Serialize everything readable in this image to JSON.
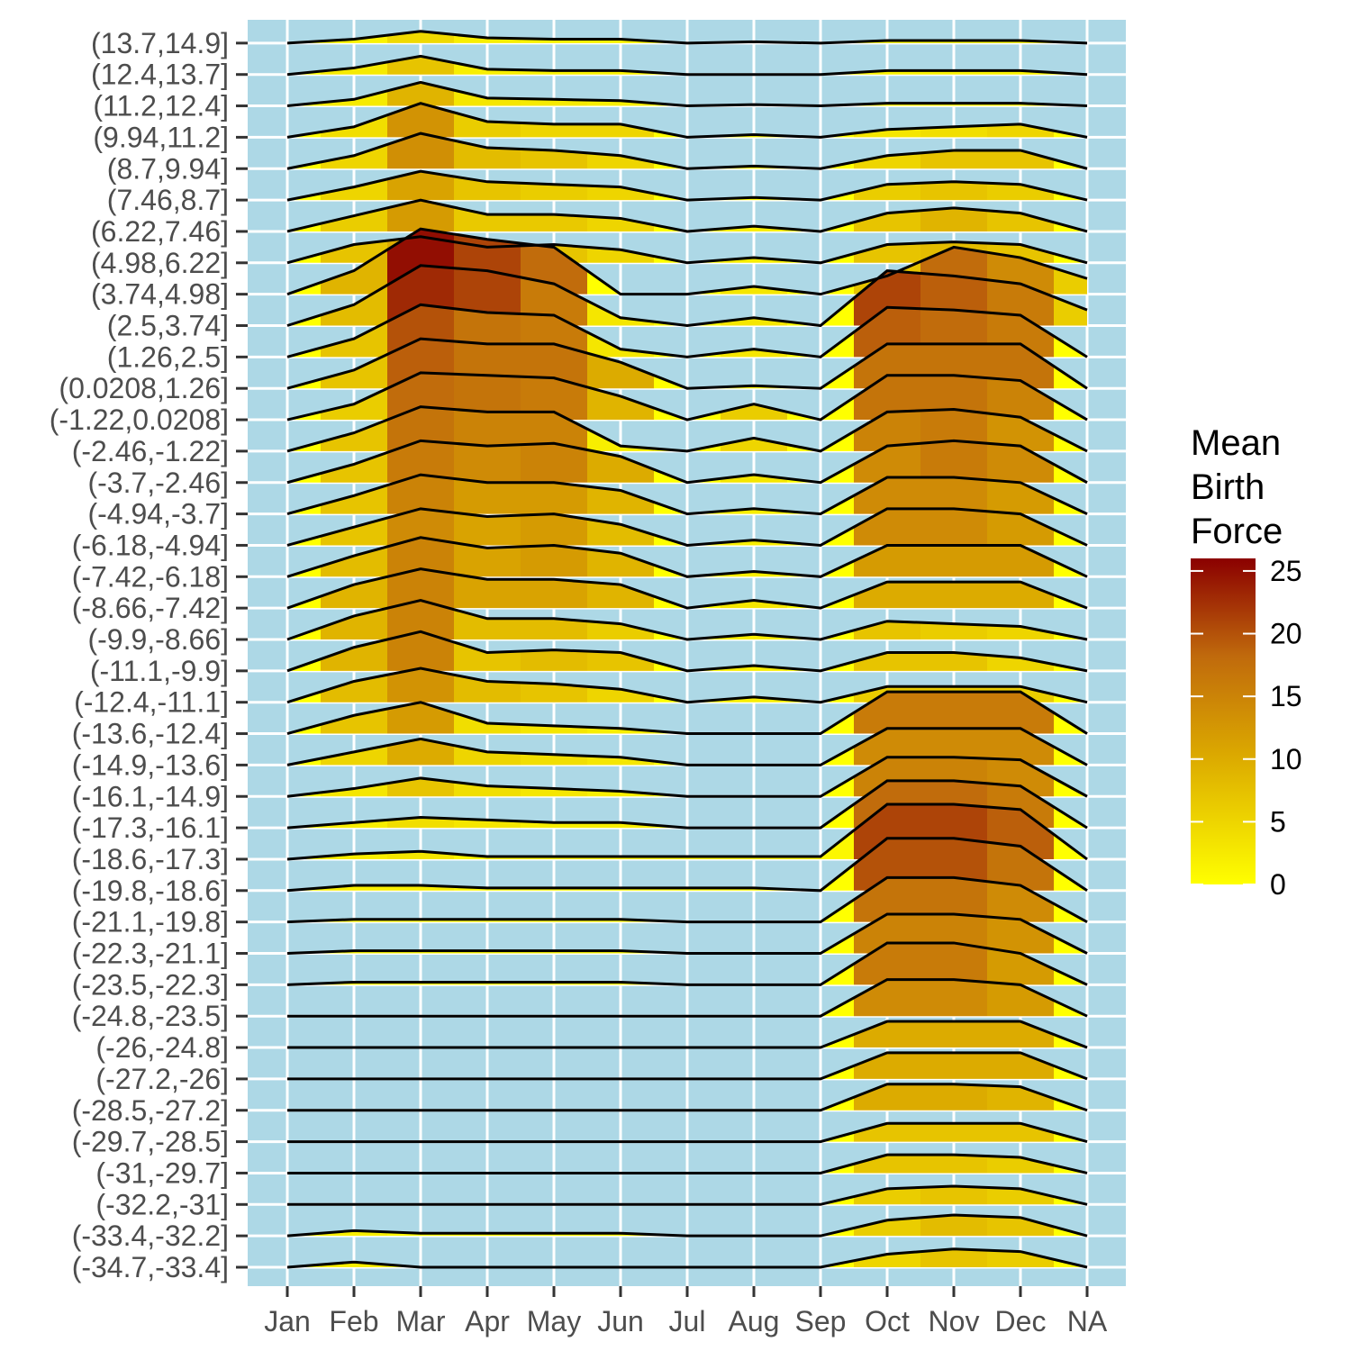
{
  "chart_data": {
    "type": "ridgeline",
    "xlabel": "",
    "ylabel": "",
    "categories": [
      "Jan",
      "Feb",
      "Mar",
      "Apr",
      "May",
      "Jun",
      "Jul",
      "Aug",
      "Sep",
      "Oct",
      "Nov",
      "Dec",
      "NA"
    ],
    "rows": [
      {
        "label": "(13.7,14.9]",
        "values": [
          0,
          1.5,
          4.5,
          2,
          1.5,
          1.5,
          0,
          0.5,
          0,
          1,
          1,
          1,
          0
        ]
      },
      {
        "label": "(12.4,13.7]",
        "values": [
          0,
          2.5,
          7,
          2,
          1.5,
          1.5,
          0,
          0,
          0,
          1.5,
          1.5,
          1.5,
          0
        ]
      },
      {
        "label": "(11.2,12.4]",
        "values": [
          0,
          2.5,
          9,
          3,
          2.5,
          2,
          0,
          0.5,
          0,
          1,
          1,
          1,
          0
        ]
      },
      {
        "label": "(9.94,11.2]",
        "values": [
          0,
          4,
          13,
          6,
          5,
          5,
          0,
          1,
          0,
          3,
          4,
          5,
          0
        ]
      },
      {
        "label": "(8.7,9.94]",
        "values": [
          0,
          5,
          13.5,
          8,
          7,
          5,
          0,
          1,
          0,
          5,
          7,
          7,
          0
        ]
      },
      {
        "label": "(7.46,8.7]",
        "values": [
          0,
          5,
          11,
          7,
          6,
          5,
          0,
          1,
          0,
          6,
          7,
          6,
          0
        ]
      },
      {
        "label": "(6.22,7.46]",
        "values": [
          0,
          6,
          12,
          6.5,
          6.5,
          5,
          0,
          2,
          0,
          7,
          9,
          7,
          0
        ]
      },
      {
        "label": "(4.98,6.22]",
        "values": [
          0,
          7,
          10,
          6,
          7,
          5,
          0,
          2,
          0,
          7,
          8,
          7,
          0
        ]
      },
      {
        "label": "(3.74,4.98]",
        "values": [
          0,
          9,
          25,
          21,
          18,
          0,
          0,
          3,
          0,
          7,
          18,
          14,
          6
        ]
      },
      {
        "label": "(2.5,3.74]",
        "values": [
          0,
          8,
          23,
          21,
          16,
          3,
          0,
          3,
          0,
          21,
          19,
          16,
          6
        ]
      },
      {
        "label": "(1.26,2.5]",
        "values": [
          0,
          7,
          20,
          17,
          16,
          3,
          0,
          3,
          0,
          19,
          18,
          16,
          0
        ]
      },
      {
        "label": "(0.0208,1.26]",
        "values": [
          0,
          7,
          19,
          17,
          17,
          10,
          0,
          1,
          0,
          17,
          17,
          17,
          0
        ]
      },
      {
        "label": "(-1.22,0.0208]",
        "values": [
          0,
          6,
          18,
          17,
          16,
          9,
          0,
          6,
          0,
          17,
          17,
          15,
          0
        ]
      },
      {
        "label": "(-2.46,-1.22]",
        "values": [
          0,
          7,
          17,
          15,
          15,
          2,
          0,
          5,
          0,
          15,
          16,
          13,
          0
        ]
      },
      {
        "label": "(-3.7,-2.46]",
        "values": [
          0,
          7,
          16,
          14,
          15,
          10,
          0,
          3,
          0,
          14,
          16,
          14,
          0
        ]
      },
      {
        "label": "(-4.94,-3.7]",
        "values": [
          0,
          7,
          15,
          12,
          12,
          9,
          0,
          2,
          0,
          14,
          14,
          12,
          0
        ]
      },
      {
        "label": "(-6.18,-4.94]",
        "values": [
          0,
          7,
          14,
          11,
          12,
          8,
          0,
          2,
          0,
          14,
          14,
          12,
          0
        ]
      },
      {
        "label": "(-7.42,-6.18]",
        "values": [
          0,
          8,
          15,
          11,
          12,
          9,
          0,
          2,
          0,
          12,
          12,
          12,
          0
        ]
      },
      {
        "label": "(-8.66,-7.42]",
        "values": [
          0,
          9,
          15,
          11,
          11,
          9,
          0,
          3,
          0,
          10,
          10,
          10,
          0
        ]
      },
      {
        "label": "(-9.9,-8.66]",
        "values": [
          0,
          9,
          15,
          8,
          8,
          6,
          0,
          2,
          0,
          7,
          6,
          5,
          0
        ]
      },
      {
        "label": "(-11.1,-9.9]",
        "values": [
          0,
          9,
          15,
          7,
          8,
          7,
          0,
          2,
          0,
          7,
          7,
          5,
          0
        ]
      },
      {
        "label": "(-12.4,-11.1]",
        "values": [
          0,
          8,
          13,
          8,
          7,
          5,
          0,
          2,
          0,
          6,
          6,
          6,
          0
        ]
      },
      {
        "label": "(-13.6,-12.4]",
        "values": [
          0,
          7,
          12,
          4,
          3,
          2,
          0,
          0,
          0,
          16,
          16,
          16,
          0
        ]
      },
      {
        "label": "(-14.9,-13.6]",
        "values": [
          0,
          5,
          10,
          5,
          4,
          3,
          0,
          0,
          0,
          14,
          14,
          14,
          0
        ]
      },
      {
        "label": "(-16.1,-14.9]",
        "values": [
          0,
          3,
          7,
          4,
          3,
          2,
          0,
          0,
          0,
          15,
          15,
          14,
          0
        ]
      },
      {
        "label": "(-17.3,-16.1]",
        "values": [
          0,
          2,
          4,
          3,
          2,
          2,
          0,
          0,
          0,
          18,
          18,
          16,
          0
        ]
      },
      {
        "label": "(-18.6,-17.3]",
        "values": [
          0,
          2,
          3,
          1,
          1,
          1,
          1,
          1,
          1,
          21,
          21,
          19,
          0
        ]
      },
      {
        "label": "(-19.8,-18.6]",
        "values": [
          0,
          2,
          2,
          1,
          1,
          1,
          1,
          1,
          0,
          20,
          20,
          17,
          0
        ]
      },
      {
        "label": "(-21.1,-19.8]",
        "values": [
          0,
          1,
          1,
          1,
          1,
          1,
          0,
          0,
          0,
          17,
          17,
          14,
          0
        ]
      },
      {
        "label": "(-22.3,-21.1]",
        "values": [
          0,
          1,
          1,
          1,
          1,
          1,
          0,
          0,
          0,
          15,
          15,
          13,
          0
        ]
      },
      {
        "label": "(-23.5,-22.3]",
        "values": [
          0,
          1,
          1,
          1,
          1,
          1,
          0,
          0,
          0,
          16,
          16,
          12,
          0
        ]
      },
      {
        "label": "(-24.8,-23.5]",
        "values": [
          0,
          0,
          0,
          0,
          0,
          0,
          0,
          0,
          0,
          14,
          14,
          12,
          0
        ]
      },
      {
        "label": "(-26,-24.8]",
        "values": [
          0,
          0,
          0,
          0,
          0,
          0,
          0,
          0,
          0,
          10,
          10,
          10,
          0
        ]
      },
      {
        "label": "(-27.2,-26]",
        "values": [
          0,
          0,
          0,
          0,
          0,
          0,
          0,
          0,
          0,
          10,
          10,
          10,
          0
        ]
      },
      {
        "label": "(-28.5,-27.2]",
        "values": [
          0,
          0,
          0,
          0,
          0,
          0,
          0,
          0,
          0,
          10,
          10,
          9,
          0
        ]
      },
      {
        "label": "(-29.7,-28.5]",
        "values": [
          0,
          0,
          0,
          0,
          0,
          0,
          0,
          0,
          0,
          7,
          7,
          7,
          0
        ]
      },
      {
        "label": "(-31,-29.7]",
        "values": [
          0,
          0,
          0,
          0,
          0,
          0,
          0,
          0,
          0,
          7,
          7,
          6,
          0
        ]
      },
      {
        "label": "(-32.2,-31]",
        "values": [
          0,
          0,
          0,
          0,
          0,
          0,
          0,
          0,
          0,
          6,
          7,
          6,
          0
        ]
      },
      {
        "label": "(-33.4,-32.2]",
        "values": [
          0,
          2,
          1,
          1,
          1,
          1,
          0,
          0,
          0,
          6,
          8,
          7,
          0
        ]
      },
      {
        "label": "(-34.7,-33.4]",
        "values": [
          0,
          2,
          0,
          0,
          0,
          0,
          0,
          0,
          0,
          5,
          7,
          6,
          0
        ]
      }
    ],
    "legend": {
      "title_lines": [
        "Mean",
        "Birth",
        "Force"
      ],
      "ticks": [
        "0",
        "5",
        "10",
        "15",
        "20",
        "25"
      ],
      "range": [
        0,
        26
      ],
      "placement": "right"
    },
    "colors": {
      "panel_background": "#add8e6",
      "grid": "#ffffff",
      "line": "#000000",
      "low": "#ffff00",
      "mid": "#dba800",
      "high": "#8b0000"
    },
    "grid": true
  }
}
